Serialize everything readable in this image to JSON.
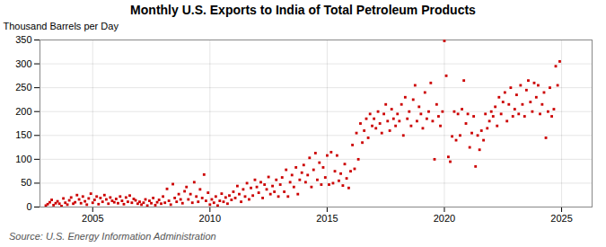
{
  "chart_data": {
    "type": "scatter",
    "title": "Monthly U.S. Exports to India of Total Petroleum Products",
    "ylabel": "Thousand Barrels per Day",
    "annotations": [
      "Source: U.S. Energy Information Administration"
    ],
    "color": "#cc0000",
    "marker": "square",
    "grid": true,
    "xlim": [
      2002.75,
      2026.3
    ],
    "xticks": [
      2005,
      2010,
      2015,
      2020,
      2025
    ],
    "ylim": [
      0,
      350
    ],
    "yticks": [
      0,
      50,
      100,
      150,
      200,
      250,
      300,
      350
    ],
    "x": [
      2003.0,
      2003.08,
      2003.17,
      2003.25,
      2003.33,
      2003.42,
      2003.5,
      2003.58,
      2003.67,
      2003.75,
      2003.83,
      2003.92,
      2004.0,
      2004.08,
      2004.17,
      2004.25,
      2004.33,
      2004.42,
      2004.5,
      2004.58,
      2004.67,
      2004.75,
      2004.83,
      2004.92,
      2005.0,
      2005.08,
      2005.17,
      2005.25,
      2005.33,
      2005.42,
      2005.5,
      2005.58,
      2005.67,
      2005.75,
      2005.83,
      2005.92,
      2006.0,
      2006.08,
      2006.17,
      2006.25,
      2006.33,
      2006.42,
      2006.5,
      2006.58,
      2006.67,
      2006.75,
      2006.83,
      2006.92,
      2007.0,
      2007.08,
      2007.17,
      2007.25,
      2007.33,
      2007.42,
      2007.5,
      2007.58,
      2007.67,
      2007.75,
      2007.83,
      2007.92,
      2008.0,
      2008.08,
      2008.17,
      2008.25,
      2008.33,
      2008.42,
      2008.5,
      2008.58,
      2008.67,
      2008.75,
      2008.83,
      2008.92,
      2009.0,
      2009.08,
      2009.17,
      2009.25,
      2009.33,
      2009.42,
      2009.5,
      2009.58,
      2009.67,
      2009.75,
      2009.83,
      2009.92,
      2010.0,
      2010.08,
      2010.17,
      2010.25,
      2010.33,
      2010.42,
      2010.5,
      2010.58,
      2010.67,
      2010.75,
      2010.83,
      2010.92,
      2011.0,
      2011.08,
      2011.17,
      2011.25,
      2011.33,
      2011.42,
      2011.5,
      2011.58,
      2011.67,
      2011.75,
      2011.83,
      2011.92,
      2012.0,
      2012.08,
      2012.17,
      2012.25,
      2012.33,
      2012.42,
      2012.5,
      2012.58,
      2012.67,
      2012.75,
      2012.83,
      2012.92,
      2013.0,
      2013.08,
      2013.17,
      2013.25,
      2013.33,
      2013.42,
      2013.5,
      2013.58,
      2013.67,
      2013.75,
      2013.83,
      2013.92,
      2014.0,
      2014.08,
      2014.17,
      2014.25,
      2014.33,
      2014.42,
      2014.5,
      2014.58,
      2014.67,
      2014.75,
      2014.83,
      2014.92,
      2015.0,
      2015.08,
      2015.17,
      2015.25,
      2015.33,
      2015.42,
      2015.5,
      2015.58,
      2015.67,
      2015.75,
      2015.83,
      2015.92,
      2016.0,
      2016.08,
      2016.17,
      2016.25,
      2016.33,
      2016.42,
      2016.5,
      2016.58,
      2016.67,
      2016.75,
      2016.83,
      2016.92,
      2017.0,
      2017.08,
      2017.17,
      2017.25,
      2017.33,
      2017.42,
      2017.5,
      2017.58,
      2017.67,
      2017.75,
      2017.83,
      2017.92,
      2018.0,
      2018.08,
      2018.17,
      2018.25,
      2018.33,
      2018.42,
      2018.5,
      2018.58,
      2018.67,
      2018.75,
      2018.83,
      2018.92,
      2019.0,
      2019.08,
      2019.17,
      2019.25,
      2019.33,
      2019.42,
      2019.5,
      2019.58,
      2019.67,
      2019.75,
      2019.83,
      2019.92,
      2020.0,
      2020.08,
      2020.17,
      2020.25,
      2020.33,
      2020.42,
      2020.5,
      2020.58,
      2020.67,
      2020.75,
      2020.83,
      2020.92,
      2021.0,
      2021.08,
      2021.17,
      2021.25,
      2021.33,
      2021.42,
      2021.5,
      2021.58,
      2021.67,
      2021.75,
      2021.83,
      2021.92,
      2022.0,
      2022.08,
      2022.17,
      2022.25,
      2022.33,
      2022.42,
      2022.5,
      2022.58,
      2022.67,
      2022.75,
      2022.83,
      2022.92,
      2023.0,
      2023.08,
      2023.17,
      2023.25,
      2023.33,
      2023.42,
      2023.5,
      2023.58,
      2023.67,
      2023.75,
      2023.83,
      2023.92,
      2024.0,
      2024.08,
      2024.17,
      2024.25,
      2024.33,
      2024.42,
      2024.5,
      2024.58,
      2024.67,
      2024.75,
      2024.83,
      2024.92
    ],
    "values": [
      3,
      6,
      10,
      15,
      4,
      8,
      12,
      7,
      2,
      18,
      9,
      5,
      14,
      20,
      7,
      10,
      25,
      16,
      8,
      22,
      12,
      5,
      18,
      28,
      9,
      15,
      22,
      6,
      19,
      11,
      25,
      16,
      7,
      20,
      13,
      10,
      17,
      8,
      22,
      13,
      6,
      20,
      11,
      24,
      9,
      17,
      14,
      7,
      11,
      5,
      9,
      16,
      3,
      13,
      8,
      19,
      4,
      10,
      15,
      7,
      22,
      9,
      38,
      13,
      5,
      48,
      19,
      11,
      27,
      16,
      8,
      33,
      42,
      16,
      27,
      9,
      52,
      22,
      11,
      37,
      19,
      68,
      13,
      30,
      5,
      16,
      9,
      22,
      3,
      13,
      28,
      11,
      20,
      7,
      24,
      15,
      32,
      19,
      44,
      27,
      11,
      37,
      22,
      50,
      16,
      40,
      24,
      57,
      42,
      30,
      52,
      19,
      47,
      37,
      63,
      27,
      44,
      32,
      57,
      22,
      47,
      62,
      32,
      78,
      22,
      52,
      67,
      42,
      83,
      27,
      57,
      72,
      88,
      52,
      67,
      103,
      42,
      78,
      113,
      57,
      93,
      47,
      83,
      62,
      108,
      47,
      115,
      50,
      75,
      108,
      55,
      70,
      45,
      90,
      60,
      40,
      75,
      130,
      80,
      155,
      100,
      175,
      135,
      160,
      185,
      145,
      195,
      170,
      185,
      165,
      200,
      175,
      155,
      195,
      215,
      180,
      160,
      205,
      185,
      170,
      195,
      180,
      215,
      150,
      230,
      185,
      200,
      170,
      225,
      255,
      180,
      210,
      195,
      165,
      240,
      185,
      200,
      260,
      180,
      100,
      215,
      190,
      170,
      200,
      348,
      275,
      105,
      95,
      148,
      200,
      140,
      195,
      150,
      205,
      265,
      175,
      195,
      125,
      155,
      190,
      85,
      150,
      120,
      160,
      140,
      195,
      165,
      180,
      200,
      190,
      210,
      170,
      230,
      195,
      220,
      240,
      180,
      215,
      250,
      190,
      205,
      235,
      195,
      255,
      215,
      190,
      245,
      265,
      220,
      200,
      260,
      230,
      255,
      195,
      215,
      240,
      145,
      200,
      250,
      190,
      205,
      295,
      255,
      305
    ]
  }
}
